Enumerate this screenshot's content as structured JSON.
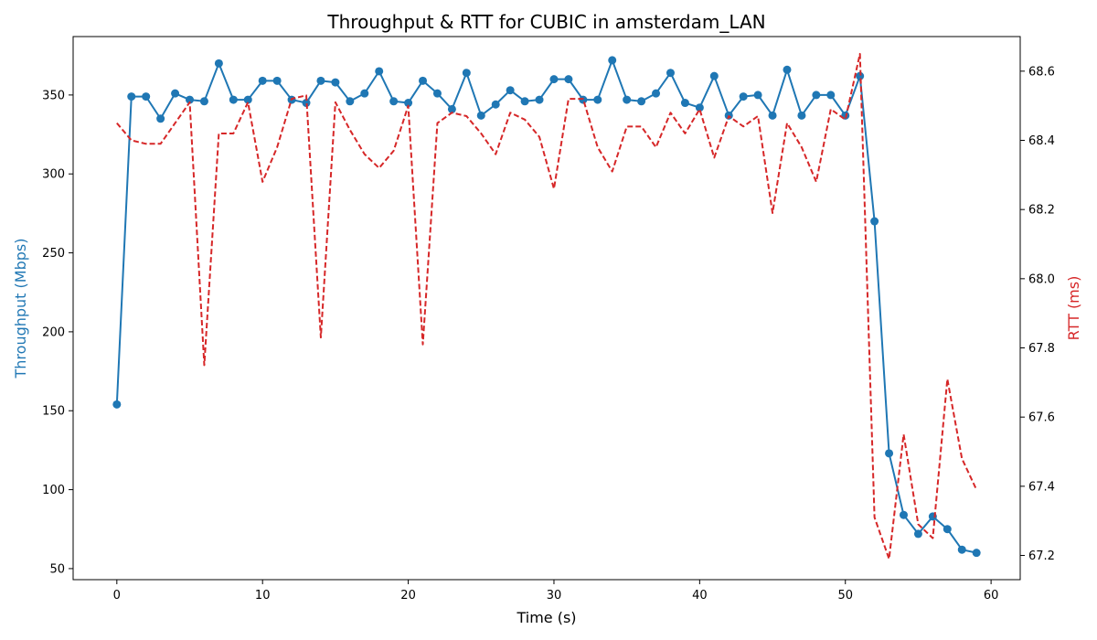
{
  "chart_data": {
    "type": "line",
    "title": "Throughput & RTT for CUBIC in amsterdam_LAN",
    "xlabel": "Time (s)",
    "xlim": [
      -3,
      62
    ],
    "xticks": [
      0,
      10,
      20,
      30,
      40,
      50,
      60
    ],
    "y_left": {
      "label": "Throughput (Mbps)",
      "color": "#1f77b4",
      "lim": [
        43,
        387
      ],
      "ticks": [
        50,
        100,
        150,
        200,
        250,
        300,
        350
      ]
    },
    "y_right": {
      "label": "RTT (ms)",
      "color": "#d62728",
      "lim": [
        67.13,
        68.7
      ],
      "ticks": [
        67.2,
        67.4,
        67.6,
        67.8,
        68.0,
        68.2,
        68.4,
        68.6
      ],
      "tick_labels": [
        "67.2",
        "67.4",
        "67.6",
        "67.8",
        "68.0",
        "68.2",
        "68.4",
        "68.6"
      ]
    },
    "series": [
      {
        "axis": "left",
        "style": "solid-markers",
        "color": "#1f77b4",
        "x": [
          0,
          1,
          2,
          3,
          4,
          5,
          6,
          7,
          8,
          9,
          10,
          11,
          12,
          13,
          14,
          15,
          16,
          17,
          18,
          19,
          20,
          21,
          22,
          23,
          24,
          25,
          26,
          27,
          28,
          29,
          30,
          31,
          32,
          33,
          34,
          35,
          36,
          37,
          38,
          39,
          40,
          41,
          42,
          43,
          44,
          45,
          46,
          47,
          48,
          49,
          50,
          51,
          52,
          53,
          54,
          55,
          56,
          57,
          58,
          59
        ],
        "values": [
          154,
          349,
          349,
          335,
          351,
          347,
          346,
          370,
          347,
          347,
          359,
          359,
          347,
          345,
          359,
          358,
          346,
          351,
          365,
          346,
          345,
          359,
          351,
          341,
          364,
          337,
          344,
          353,
          346,
          347,
          360,
          360,
          347,
          347,
          372,
          347,
          346,
          351,
          364,
          345,
          342,
          362,
          337,
          349,
          350,
          337,
          366,
          337,
          350,
          350,
          337,
          362,
          270,
          123,
          84,
          72,
          83,
          75,
          62,
          60
        ]
      },
      {
        "axis": "right",
        "style": "dashed",
        "color": "#d62728",
        "x": [
          0,
          1,
          2,
          3,
          4,
          5,
          6,
          7,
          8,
          9,
          10,
          11,
          12,
          13,
          14,
          15,
          16,
          17,
          18,
          19,
          20,
          21,
          22,
          23,
          24,
          25,
          26,
          27,
          28,
          29,
          30,
          31,
          32,
          33,
          34,
          35,
          36,
          37,
          38,
          39,
          40,
          41,
          42,
          43,
          44,
          45,
          46,
          47,
          48,
          49,
          50,
          51,
          52,
          53,
          54,
          55,
          56,
          57,
          58,
          59
        ],
        "values": [
          68.45,
          68.4,
          68.39,
          68.39,
          68.45,
          68.51,
          67.75,
          68.42,
          68.42,
          68.51,
          68.28,
          68.38,
          68.52,
          68.53,
          67.83,
          68.51,
          68.43,
          68.36,
          68.32,
          68.37,
          68.5,
          67.81,
          68.45,
          68.48,
          68.47,
          68.42,
          68.36,
          68.48,
          68.46,
          68.41,
          68.26,
          68.52,
          68.52,
          68.38,
          68.31,
          68.44,
          68.44,
          68.38,
          68.48,
          68.42,
          68.49,
          68.35,
          68.47,
          68.44,
          68.47,
          68.19,
          68.45,
          68.38,
          68.28,
          68.49,
          68.46,
          68.65,
          67.31,
          67.19,
          67.55,
          67.29,
          67.25,
          67.71,
          67.48,
          67.39
        ]
      }
    ]
  }
}
